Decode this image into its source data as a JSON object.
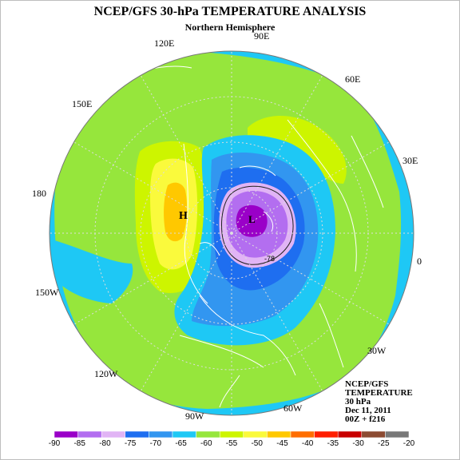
{
  "title": "NCEP/GFS 30-hPa TEMPERATURE ANALYSIS",
  "subtitle": "Northern Hemisphere",
  "longitude_labels": [
    "90E",
    "60E",
    "30E",
    "0",
    "30W",
    "60W",
    "90W",
    "120W",
    "150W",
    "180",
    "150E",
    "120E"
  ],
  "low_marker": "L",
  "high_marker": "H",
  "contour_label": "-78",
  "info_box": [
    "NCEP/GFS",
    "TEMPERATURE",
    "30 hPa",
    "Dec 11, 2011",
    "00Z + f216"
  ],
  "colorbar": {
    "ticks": [
      "-90",
      "-85",
      "-80",
      "-75",
      "-70",
      "-65",
      "-60",
      "-55",
      "-50",
      "-45",
      "-40",
      "-35",
      "-30",
      "-25",
      "-20"
    ],
    "colors": [
      "#9a00c8",
      "#b36ef0",
      "#e1b4f5",
      "#1e6ef0",
      "#3296f0",
      "#1ec8f5",
      "#96e63c",
      "#cdf500",
      "#fafa3c",
      "#ffc800",
      "#ff6e00",
      "#ff1e00",
      "#c80000",
      "#8c4b32",
      "#787878"
    ]
  },
  "palette": {
    "background": "#ffffff",
    "coastline": "#ffffff",
    "grid": "#dddddd"
  }
}
